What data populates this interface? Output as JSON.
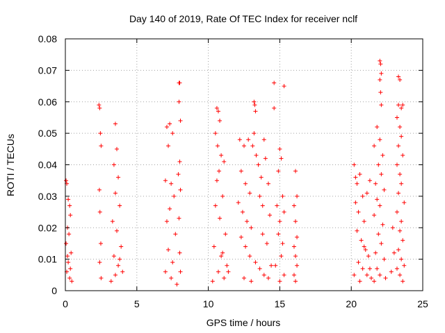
{
  "chart_data": {
    "type": "scatter",
    "title": "Day 140 of 2019, Rate Of TEC Index for receiver nclf",
    "xlabel": "GPS time / hours",
    "ylabel": "ROTI / TECUs",
    "xlim": [
      0,
      25
    ],
    "ylim": [
      0,
      0.08
    ],
    "xticks": [
      0,
      5,
      10,
      15,
      20,
      25
    ],
    "xtick_labels": [
      "0",
      "5",
      "10",
      "15",
      "20",
      "25"
    ],
    "yticks": [
      0,
      0.01,
      0.02,
      0.03,
      0.04,
      0.05,
      0.06,
      0.07,
      0.08
    ],
    "ytick_labels": [
      "0",
      "0.01",
      "0.02",
      "0.03",
      "0.04",
      "0.05",
      "0.06",
      "0.07",
      "0.08"
    ],
    "grid": true,
    "marker": "+",
    "series": [
      {
        "name": "ROTI",
        "color": "#ff0000",
        "clusters_summary": [
          {
            "x_range": [
              0.0,
              0.5
            ],
            "y_max": 0.035
          },
          {
            "x_range": [
              2.3,
              2.6
            ],
            "y_max": 0.059
          },
          {
            "x_range": [
              3.2,
              4.1
            ],
            "y_max": 0.053
          },
          {
            "x_range": [
              6.9,
              8.1
            ],
            "y_max": 0.066
          },
          {
            "x_range": [
              10.2,
              11.5
            ],
            "y_max": 0.058
          },
          {
            "x_range": [
              12.0,
              14.5
            ],
            "y_max": 0.061
          },
          {
            "x_range": [
              14.5,
              15.6
            ],
            "y_max": 0.066
          },
          {
            "x_range": [
              15.7,
              16.3
            ],
            "y_max": 0.038
          },
          {
            "x_range": [
              20.0,
              21.5
            ],
            "y_max": 0.04
          },
          {
            "x_range": [
              21.5,
              22.5
            ],
            "y_max": 0.073
          },
          {
            "x_range": [
              22.5,
              23.8
            ],
            "y_max": 0.068
          }
        ],
        "points": [
          [
            0.05,
            0.035
          ],
          [
            0.1,
            0.034
          ],
          [
            0.2,
            0.029
          ],
          [
            0.3,
            0.027
          ],
          [
            0.35,
            0.024
          ],
          [
            0.15,
            0.02
          ],
          [
            0.25,
            0.018
          ],
          [
            0.05,
            0.015
          ],
          [
            0.4,
            0.012
          ],
          [
            0.2,
            0.009
          ],
          [
            0.1,
            0.006
          ],
          [
            0.3,
            0.004
          ],
          [
            0.45,
            0.003
          ],
          [
            0.15,
            0.011
          ],
          [
            0.35,
            0.007
          ],
          [
            2.35,
            0.059
          ],
          [
            2.4,
            0.058
          ],
          [
            2.45,
            0.05
          ],
          [
            2.5,
            0.046
          ],
          [
            2.38,
            0.032
          ],
          [
            2.42,
            0.025
          ],
          [
            2.48,
            0.015
          ],
          [
            2.4,
            0.009
          ],
          [
            2.5,
            0.004
          ],
          [
            3.5,
            0.053
          ],
          [
            3.6,
            0.045
          ],
          [
            3.4,
            0.04
          ],
          [
            3.7,
            0.036
          ],
          [
            3.5,
            0.031
          ],
          [
            3.8,
            0.027
          ],
          [
            3.3,
            0.022
          ],
          [
            3.6,
            0.019
          ],
          [
            3.9,
            0.014
          ],
          [
            3.4,
            0.011
          ],
          [
            3.7,
            0.008
          ],
          [
            3.5,
            0.005
          ],
          [
            4.0,
            0.006
          ],
          [
            3.2,
            0.003
          ],
          [
            3.8,
            0.01
          ],
          [
            7.1,
            0.052
          ],
          [
            7.3,
            0.053
          ],
          [
            7.5,
            0.05
          ],
          [
            7.2,
            0.046
          ],
          [
            7.0,
            0.035
          ],
          [
            7.4,
            0.034
          ],
          [
            7.6,
            0.03
          ],
          [
            7.3,
            0.026
          ],
          [
            7.1,
            0.022
          ],
          [
            7.7,
            0.018
          ],
          [
            7.2,
            0.013
          ],
          [
            7.5,
            0.009
          ],
          [
            7.0,
            0.006
          ],
          [
            7.4,
            0.004
          ],
          [
            7.8,
            0.002
          ],
          [
            7.95,
            0.066
          ],
          [
            8.0,
            0.066
          ],
          [
            7.95,
            0.06
          ],
          [
            8.05,
            0.054
          ],
          [
            8.0,
            0.041
          ],
          [
            7.9,
            0.037
          ],
          [
            8.05,
            0.032
          ],
          [
            7.95,
            0.023
          ],
          [
            8.0,
            0.012
          ],
          [
            8.05,
            0.006
          ],
          [
            10.6,
            0.058
          ],
          [
            10.7,
            0.057
          ],
          [
            10.8,
            0.054
          ],
          [
            10.5,
            0.05
          ],
          [
            10.65,
            0.046
          ],
          [
            10.9,
            0.043
          ],
          [
            11.1,
            0.041
          ],
          [
            10.75,
            0.038
          ],
          [
            10.6,
            0.035
          ],
          [
            11.0,
            0.03
          ],
          [
            10.5,
            0.027
          ],
          [
            10.8,
            0.023
          ],
          [
            11.2,
            0.018
          ],
          [
            10.4,
            0.014
          ],
          [
            10.9,
            0.011
          ],
          [
            11.3,
            0.008
          ],
          [
            10.7,
            0.006
          ],
          [
            11.1,
            0.004
          ],
          [
            10.3,
            0.003
          ],
          [
            11.4,
            0.006
          ],
          [
            11.0,
            0.012
          ],
          [
            12.2,
            0.048
          ],
          [
            12.5,
            0.046
          ],
          [
            12.8,
            0.048
          ],
          [
            12.3,
            0.038
          ],
          [
            12.6,
            0.034
          ],
          [
            12.9,
            0.031
          ],
          [
            12.1,
            0.028
          ],
          [
            12.4,
            0.025
          ],
          [
            12.7,
            0.022
          ],
          [
            13.0,
            0.02
          ],
          [
            13.2,
            0.06
          ],
          [
            13.25,
            0.059
          ],
          [
            13.3,
            0.057
          ],
          [
            13.2,
            0.05
          ],
          [
            13.1,
            0.046
          ],
          [
            13.35,
            0.043
          ],
          [
            13.5,
            0.04
          ],
          [
            13.7,
            0.036
          ],
          [
            13.9,
            0.048
          ],
          [
            14.0,
            0.042
          ],
          [
            14.2,
            0.034
          ],
          [
            13.6,
            0.03
          ],
          [
            13.8,
            0.027
          ],
          [
            14.3,
            0.024
          ],
          [
            12.3,
            0.017
          ],
          [
            12.6,
            0.014
          ],
          [
            12.9,
            0.011
          ],
          [
            13.3,
            0.009
          ],
          [
            13.6,
            0.007
          ],
          [
            13.9,
            0.005
          ],
          [
            14.2,
            0.004
          ],
          [
            12.5,
            0.004
          ],
          [
            14.4,
            0.008
          ],
          [
            13.0,
            0.003
          ],
          [
            13.8,
            0.018
          ],
          [
            14.1,
            0.015
          ],
          [
            14.6,
            0.066
          ],
          [
            15.3,
            0.065
          ],
          [
            14.6,
            0.058
          ],
          [
            15.0,
            0.045
          ],
          [
            15.1,
            0.042
          ],
          [
            14.9,
            0.038
          ],
          [
            15.2,
            0.03
          ],
          [
            14.8,
            0.027
          ],
          [
            15.3,
            0.025
          ],
          [
            15.0,
            0.022
          ],
          [
            14.9,
            0.018
          ],
          [
            15.2,
            0.015
          ],
          [
            15.1,
            0.011
          ],
          [
            14.7,
            0.008
          ],
          [
            15.3,
            0.005
          ],
          [
            15.0,
            0.003
          ],
          [
            16.1,
            0.038
          ],
          [
            16.2,
            0.03
          ],
          [
            16.0,
            0.027
          ],
          [
            16.1,
            0.022
          ],
          [
            16.2,
            0.017
          ],
          [
            16.0,
            0.014
          ],
          [
            16.1,
            0.011
          ],
          [
            16.2,
            0.008
          ],
          [
            16.0,
            0.005
          ],
          [
            16.1,
            0.003
          ],
          [
            20.2,
            0.04
          ],
          [
            20.3,
            0.036
          ],
          [
            20.4,
            0.034
          ],
          [
            20.6,
            0.037
          ],
          [
            20.8,
            0.03
          ],
          [
            20.3,
            0.028
          ],
          [
            20.5,
            0.025
          ],
          [
            20.9,
            0.022
          ],
          [
            21.1,
            0.031
          ],
          [
            21.3,
            0.035
          ],
          [
            20.4,
            0.019
          ],
          [
            20.7,
            0.016
          ],
          [
            21.0,
            0.013
          ],
          [
            21.2,
            0.011
          ],
          [
            20.5,
            0.009
          ],
          [
            20.8,
            0.007
          ],
          [
            21.1,
            0.005
          ],
          [
            21.4,
            0.004
          ],
          [
            20.2,
            0.005
          ],
          [
            20.6,
            0.003
          ],
          [
            21.3,
            0.007
          ],
          [
            20.9,
            0.014
          ],
          [
            22.0,
            0.073
          ],
          [
            22.05,
            0.072
          ],
          [
            22.1,
            0.069
          ],
          [
            22.0,
            0.067
          ],
          [
            22.05,
            0.063
          ],
          [
            22.1,
            0.059
          ],
          [
            21.8,
            0.052
          ],
          [
            22.0,
            0.048
          ],
          [
            21.6,
            0.046
          ],
          [
            22.2,
            0.043
          ],
          [
            21.9,
            0.04
          ],
          [
            22.1,
            0.037
          ],
          [
            21.7,
            0.034
          ],
          [
            22.3,
            0.032
          ],
          [
            21.8,
            0.029
          ],
          [
            22.0,
            0.027
          ],
          [
            21.6,
            0.024
          ],
          [
            22.2,
            0.021
          ],
          [
            21.9,
            0.018
          ],
          [
            22.1,
            0.015
          ],
          [
            21.7,
            0.012
          ],
          [
            22.3,
            0.01
          ],
          [
            21.8,
            0.007
          ],
          [
            22.0,
            0.005
          ],
          [
            21.6,
            0.003
          ],
          [
            22.4,
            0.004
          ],
          [
            23.3,
            0.068
          ],
          [
            23.4,
            0.067
          ],
          [
            23.3,
            0.059
          ],
          [
            23.5,
            0.058
          ],
          [
            23.6,
            0.059
          ],
          [
            23.2,
            0.055
          ],
          [
            23.4,
            0.052
          ],
          [
            23.5,
            0.049
          ],
          [
            23.3,
            0.046
          ],
          [
            23.6,
            0.043
          ],
          [
            23.2,
            0.04
          ],
          [
            23.4,
            0.037
          ],
          [
            23.5,
            0.034
          ],
          [
            23.3,
            0.031
          ],
          [
            23.7,
            0.028
          ],
          [
            23.2,
            0.025
          ],
          [
            23.5,
            0.022
          ],
          [
            23.4,
            0.019
          ],
          [
            23.6,
            0.016
          ],
          [
            23.3,
            0.013
          ],
          [
            23.5,
            0.01
          ],
          [
            23.2,
            0.007
          ],
          [
            23.4,
            0.005
          ],
          [
            23.6,
            0.003
          ],
          [
            22.8,
            0.006
          ],
          [
            23.0,
            0.012
          ],
          [
            22.9,
            0.02
          ],
          [
            23.7,
            0.008
          ]
        ]
      }
    ]
  }
}
